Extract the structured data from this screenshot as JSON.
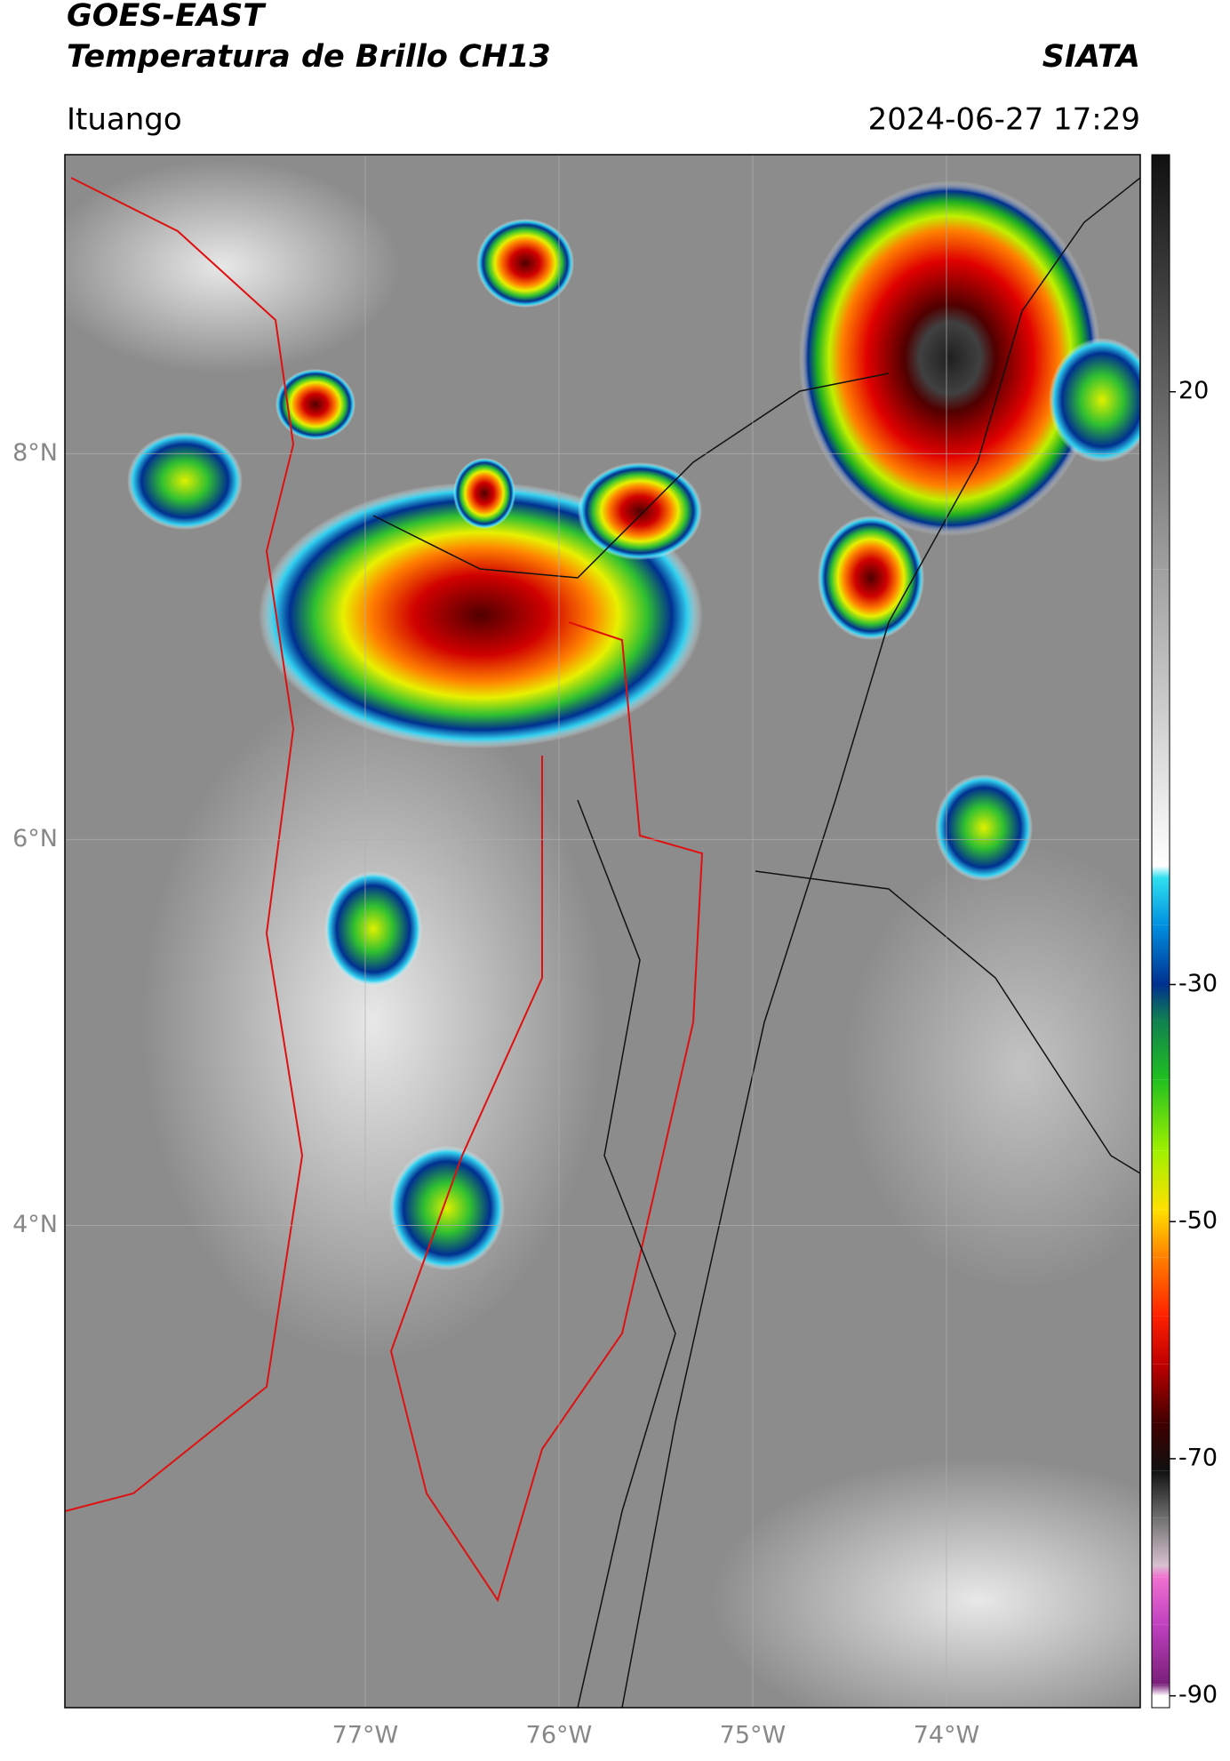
{
  "chart_data": {
    "type": "map",
    "title": "GOES-EAST",
    "subtitle": "Temperatura de Brillo CH13",
    "source": "SIATA",
    "location": "Ituango",
    "datetime": "2024-06-27 17:29",
    "xlim": [
      -78.55,
      -73.0
    ],
    "ylim": [
      1.5,
      9.55
    ],
    "xticks": [
      {
        "value": -77,
        "label": "77°W"
      },
      {
        "value": -76,
        "label": "76°W"
      },
      {
        "value": -75,
        "label": "75°W"
      },
      {
        "value": -74,
        "label": "74°W"
      }
    ],
    "yticks": [
      {
        "value": 8,
        "label": "8°N"
      },
      {
        "value": 6,
        "label": "6°N"
      },
      {
        "value": 4,
        "label": "4°N"
      }
    ],
    "grid": true,
    "colorbar_lim": [
      -91,
      40
    ],
    "colorbar_ticks": [
      20,
      -30,
      -50,
      -70,
      -90
    ],
    "colormap": [
      {
        "value": -91,
        "color": "#ffffff"
      },
      {
        "value": -90,
        "color": "#ffffff"
      },
      {
        "value": -89,
        "color": "#7a1f7a"
      },
      {
        "value": -84,
        "color": "#c040c0"
      },
      {
        "value": -80,
        "color": "#f070d0"
      },
      {
        "value": -79,
        "color": "#d8c0d0"
      },
      {
        "value": -75,
        "color": "#707070"
      },
      {
        "value": -71,
        "color": "#101010"
      },
      {
        "value": -67,
        "color": "#400000"
      },
      {
        "value": -62,
        "color": "#c00000"
      },
      {
        "value": -58,
        "color": "#ff2000"
      },
      {
        "value": -53,
        "color": "#ff8000"
      },
      {
        "value": -49,
        "color": "#ffe000"
      },
      {
        "value": -44,
        "color": "#a0f000"
      },
      {
        "value": -38,
        "color": "#20c020"
      },
      {
        "value": -33,
        "color": "#108050"
      },
      {
        "value": -30,
        "color": "#003090"
      },
      {
        "value": -25,
        "color": "#0090e0"
      },
      {
        "value": -21,
        "color": "#30e0f0"
      },
      {
        "value": -20,
        "color": "#ffffff"
      },
      {
        "value": 5,
        "color": "#a0a0a0"
      },
      {
        "value": 40,
        "color": "#101010"
      }
    ]
  }
}
